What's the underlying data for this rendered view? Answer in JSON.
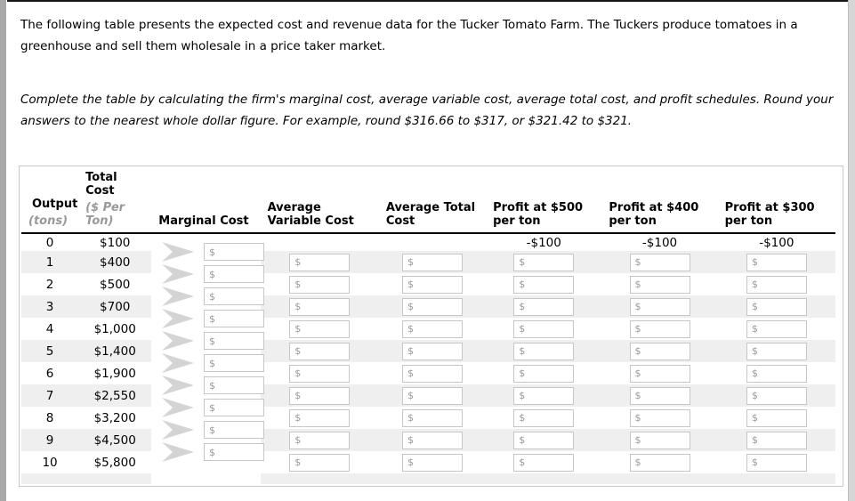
{
  "page": {
    "intro": "The following table presents the expected cost and revenue data for the Tucker Tomato Farm. The Tuckers produce tomatoes in a greenhouse and sell them wholesale in a price taker market.",
    "instructions": "Complete the table by calculating the firm's marginal cost, average variable cost, average total cost, and profit schedules. Round your answers to the nearest whole dollar figure. For example, round $316.66 to $317, or $321.42 to $321."
  },
  "table": {
    "headers": {
      "output": {
        "label": "Output",
        "sub": "(tons)"
      },
      "total_cost": {
        "label": "Total Cost",
        "sub": "($ Per Ton)"
      },
      "marginal_cost": "Marginal Cost",
      "avg_variable_cost": "Average Variable Cost",
      "avg_total_cost": "Average Total Cost",
      "profit_500": "Profit at $500 per ton",
      "profit_400": "Profit at $400 per ton",
      "profit_300": "Profit at $300 per ton"
    },
    "input_placeholder": "$",
    "rows": [
      {
        "output": "0",
        "total_cost": "$100",
        "profit_500": "-$100",
        "profit_400": "-$100",
        "profit_300": "-$100"
      },
      {
        "output": "1",
        "total_cost": "$400"
      },
      {
        "output": "2",
        "total_cost": "$500"
      },
      {
        "output": "3",
        "total_cost": "$700"
      },
      {
        "output": "4",
        "total_cost": "$1,000"
      },
      {
        "output": "5",
        "total_cost": "$1,400"
      },
      {
        "output": "6",
        "total_cost": "$1,900"
      },
      {
        "output": "7",
        "total_cost": "$2,550"
      },
      {
        "output": "8",
        "total_cost": "$3,200"
      },
      {
        "output": "9",
        "total_cost": "$4,500"
      },
      {
        "output": "10",
        "total_cost": "$5,800"
      }
    ]
  },
  "colors": {
    "band": "#efefef",
    "input_border": "#c6c6c6",
    "sub_header": "#999999",
    "chevron": "#d4d4d4",
    "panel_border": "#c9c9c9"
  }
}
